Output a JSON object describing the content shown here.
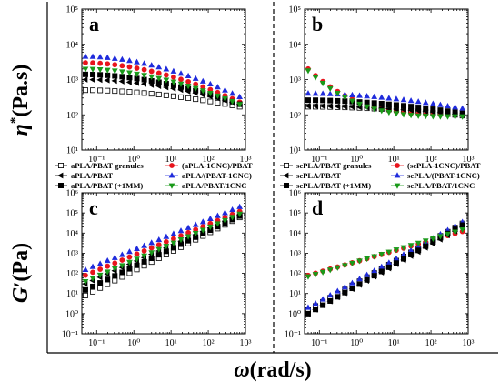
{
  "figure": {
    "y_label_top": {
      "symbol": "η",
      "sup": "*",
      "unit": "(Pa.s)"
    },
    "y_label_bottom": {
      "symbol": "G",
      "sup": "′",
      "unit": "(Pa)"
    },
    "x_label": {
      "symbol": "ω",
      "unit": "(rad/s)"
    }
  },
  "legends": {
    "a": [
      "aPLA/PBAT granules",
      "(aPLA-1CNC)/PBAT",
      "aPLA/PBAT",
      "aPLA/(PBAT-1CNC)",
      "aPLA/PBAT (+1MM)",
      "aPLA/PBAT/1CNC"
    ],
    "b": [
      "scPLA/PBAT granules",
      "(scPLA-1CNC)/PBAT",
      "scPLA/PBAT",
      "scPLA/(PBAT-1CNC)",
      "scPLA/PBAT (+1MM)",
      "scPLA/PBAT/1CNC"
    ]
  },
  "series_styles": [
    {
      "color": "#000000",
      "marker": "square-open"
    },
    {
      "color": "#e8141c",
      "marker": "circle"
    },
    {
      "color": "#000000",
      "marker": "left-triangle"
    },
    {
      "color": "#1f2bdc",
      "marker": "triangle"
    },
    {
      "color": "#000000",
      "marker": "square"
    },
    {
      "color": "#1a9a1a",
      "marker": "down-triangle"
    }
  ],
  "chart_data": [
    {
      "panel": "a",
      "type": "scatter",
      "x_scale": "log",
      "y_scale": "log",
      "xlim": [
        0.04,
        1000
      ],
      "ylim": [
        10,
        100000
      ],
      "xticks": [
        [
          "10⁻¹",
          0.1
        ],
        [
          "10⁰",
          1
        ],
        [
          "10¹",
          10
        ],
        [
          "10²",
          100
        ],
        [
          "10³",
          1000
        ]
      ],
      "yticks": [
        [
          "10¹",
          10
        ],
        [
          "10²",
          100
        ],
        [
          "10³",
          1000
        ],
        [
          "10⁴",
          10000
        ],
        [
          "10⁵",
          100000
        ]
      ],
      "label": "a",
      "series": [
        {
          "name": "aPLA/PBAT granules",
          "x_range": [
            0.05,
            700
          ],
          "y_start": 500,
          "y_end": 170
        },
        {
          "name": "(aPLA-1CNC)/PBAT",
          "x_range": [
            0.05,
            700
          ],
          "y_start": 3000,
          "y_end": 230
        },
        {
          "name": "aPLA/PBAT",
          "x_range": [
            0.05,
            700
          ],
          "y_start": 1000,
          "y_end": 200
        },
        {
          "name": "aPLA/(PBAT-1CNC)",
          "x_range": [
            0.05,
            700
          ],
          "y_start": 4500,
          "y_end": 320
        },
        {
          "name": "aPLA/PBAT (+1MM)",
          "x_range": [
            0.05,
            700
          ],
          "y_start": 1400,
          "y_end": 200
        },
        {
          "name": "aPLA/PBAT/1CNC",
          "x_range": [
            0.05,
            700
          ],
          "y_start": 2000,
          "y_end": 200
        }
      ]
    },
    {
      "panel": "b",
      "type": "scatter",
      "x_scale": "log",
      "y_scale": "log",
      "xlim": [
        0.04,
        1000
      ],
      "ylim": [
        10,
        100000
      ],
      "xticks": [
        [
          "10⁻¹",
          0.1
        ],
        [
          "10⁰",
          1
        ],
        [
          "10¹",
          10
        ],
        [
          "10²",
          100
        ],
        [
          "10³",
          1000
        ]
      ],
      "yticks": [
        [
          "10¹",
          10
        ],
        [
          "10²",
          100
        ],
        [
          "10³",
          1000
        ],
        [
          "10⁴",
          10000
        ],
        [
          "10⁵",
          100000
        ]
      ],
      "label": "b",
      "series": [
        {
          "name": "scPLA/PBAT granules",
          "x_range": [
            0.05,
            700
          ],
          "y_start": 170,
          "y_end": 95
        },
        {
          "name": "(scPLA-1CNC)/PBAT",
          "x_range": [
            0.05,
            700
          ],
          "y_start": 2000,
          "y_end": 100
        },
        {
          "name": "scPLA/PBAT",
          "x_range": [
            0.05,
            700
          ],
          "y_start": 180,
          "y_end": 100
        },
        {
          "name": "scPLA/(PBAT-1CNC)",
          "x_range": [
            0.05,
            700
          ],
          "y_start": 400,
          "y_end": 150
        },
        {
          "name": "scPLA/PBAT (+1MM)",
          "x_range": [
            0.05,
            700
          ],
          "y_start": 260,
          "y_end": 110
        },
        {
          "name": "scPLA/PBAT/1CNC",
          "x_range": [
            0.05,
            700
          ],
          "y_start": 1800,
          "y_end": 90
        }
      ]
    },
    {
      "panel": "c",
      "type": "scatter",
      "x_scale": "log",
      "y_scale": "log",
      "xlim": [
        0.04,
        1000
      ],
      "ylim": [
        0.1,
        1000000
      ],
      "xticks": [
        [
          "10⁻¹",
          0.1
        ],
        [
          "10⁰",
          1
        ],
        [
          "10¹",
          10
        ],
        [
          "10²",
          100
        ],
        [
          "10³",
          1000
        ]
      ],
      "yticks": [
        [
          "10⁻¹",
          0.1
        ],
        [
          "10⁰",
          1
        ],
        [
          "10¹",
          10
        ],
        [
          "10²",
          100
        ],
        [
          "10³",
          1000
        ],
        [
          "10⁴",
          10000
        ],
        [
          "10⁵",
          100000
        ],
        [
          "10⁶",
          1000000
        ]
      ],
      "label": "c",
      "series": [
        {
          "name": "aPLA/PBAT granules",
          "x_range": [
            0.05,
            700
          ],
          "y_start": 8,
          "y_end": 60000
        },
        {
          "name": "(aPLA-1CNC)/PBAT",
          "x_range": [
            0.05,
            700
          ],
          "y_start": 80,
          "y_end": 120000
        },
        {
          "name": "aPLA/PBAT",
          "x_range": [
            0.05,
            700
          ],
          "y_start": 30,
          "y_end": 80000
        },
        {
          "name": "aPLA/(PBAT-1CNC)",
          "x_range": [
            0.05,
            700
          ],
          "y_start": 150,
          "y_end": 200000
        },
        {
          "name": "aPLA/PBAT (+1MM)",
          "x_range": [
            0.05,
            700
          ],
          "y_start": 15,
          "y_end": 70000
        },
        {
          "name": "aPLA/PBAT/1CNC",
          "x_range": [
            0.05,
            700
          ],
          "y_start": 40,
          "y_end": 90000
        }
      ]
    },
    {
      "panel": "d",
      "type": "scatter",
      "x_scale": "log",
      "y_scale": "log",
      "xlim": [
        0.04,
        1000
      ],
      "ylim": [
        0.1,
        1000000
      ],
      "xticks": [
        [
          "10⁻¹",
          0.1
        ],
        [
          "10⁰",
          1
        ],
        [
          "10¹",
          10
        ],
        [
          "10²",
          100
        ],
        [
          "10³",
          1000
        ]
      ],
      "yticks": [
        [
          "10⁻¹",
          0.1
        ],
        [
          "10⁰",
          1
        ],
        [
          "10¹",
          10
        ],
        [
          "10²",
          100
        ],
        [
          "10³",
          1000
        ],
        [
          "10⁴",
          10000
        ],
        [
          "10⁵",
          100000
        ],
        [
          "10⁶",
          1000000
        ]
      ],
      "label": "d",
      "series": [
        {
          "name": "scPLA/PBAT granules",
          "x_range": [
            0.05,
            700
          ],
          "y_start": 1.5,
          "y_end": 30000
        },
        {
          "name": "(scPLA-1CNC)/PBAT",
          "x_range": [
            0.05,
            700
          ],
          "y_start": 80,
          "y_end": 12000
        },
        {
          "name": "scPLA/PBAT",
          "x_range": [
            0.05,
            700
          ],
          "y_start": 1,
          "y_end": 20000
        },
        {
          "name": "scPLA/(PBAT-1CNC)",
          "x_range": [
            0.05,
            700
          ],
          "y_start": 2,
          "y_end": 35000
        },
        {
          "name": "scPLA/PBAT (+1MM)",
          "x_range": [
            0.05,
            700
          ],
          "y_start": 1,
          "y_end": 25000
        },
        {
          "name": "scPLA/PBAT/1CNC",
          "x_range": [
            0.05,
            700
          ],
          "y_start": 70,
          "y_end": 15000
        }
      ]
    }
  ]
}
